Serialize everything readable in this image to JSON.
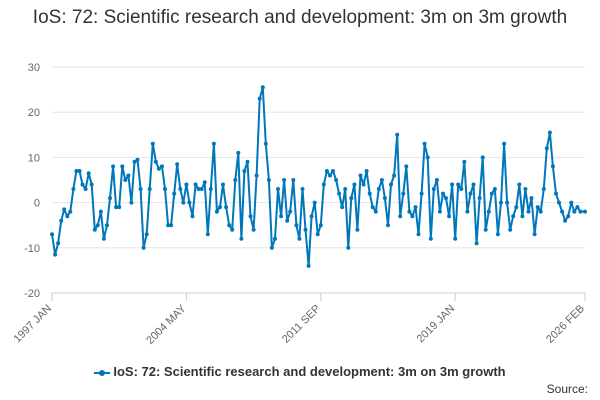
{
  "chart_data": {
    "type": "line",
    "title": "IoS: 72: Scientific research and development: 3m on 3m growth",
    "xlabel": "",
    "ylabel": "",
    "ylim": [
      -20,
      30
    ],
    "yticks": [
      -20,
      -10,
      0,
      10,
      20,
      30
    ],
    "x_range": [
      "1997-01",
      "2026-02"
    ],
    "xticks": [
      {
        "label": "1997 JAN",
        "date": "1997-01"
      },
      {
        "label": "2004 MAY",
        "date": "2004-05"
      },
      {
        "label": "2011 SEP",
        "date": "2011-09"
      },
      {
        "label": "2019 JAN",
        "date": "2019-01"
      },
      {
        "label": "2026 FEB",
        "date": "2026-02"
      }
    ],
    "grid": true,
    "legend_position": "bottom",
    "color": "#0077bb",
    "series": [
      {
        "name": "IoS: 72: Scientific research and development: 3m on 3m growth",
        "points": [
          [
            "1997-01",
            -7
          ],
          [
            "1997-03",
            -11.5
          ],
          [
            "1997-05",
            -9
          ],
          [
            "1997-07",
            -4
          ],
          [
            "1997-09",
            -1.5
          ],
          [
            "1997-11",
            -3
          ],
          [
            "1998-01",
            -2
          ],
          [
            "1998-03",
            3
          ],
          [
            "1998-05",
            7
          ],
          [
            "1998-07",
            7
          ],
          [
            "1998-09",
            4
          ],
          [
            "1998-11",
            3
          ],
          [
            "1999-01",
            6.5
          ],
          [
            "1999-03",
            4
          ],
          [
            "1999-05",
            -6
          ],
          [
            "1999-07",
            -5
          ],
          [
            "1999-09",
            -2
          ],
          [
            "1999-11",
            -8
          ],
          [
            "2000-01",
            -5
          ],
          [
            "2000-03",
            1
          ],
          [
            "2000-05",
            8
          ],
          [
            "2000-07",
            -1
          ],
          [
            "2000-09",
            -1
          ],
          [
            "2000-11",
            8
          ],
          [
            "2001-01",
            5
          ],
          [
            "2001-03",
            6
          ],
          [
            "2001-05",
            0
          ],
          [
            "2001-07",
            9
          ],
          [
            "2001-09",
            9.5
          ],
          [
            "2001-11",
            3
          ],
          [
            "2002-01",
            -10
          ],
          [
            "2002-03",
            -7
          ],
          [
            "2002-05",
            3
          ],
          [
            "2002-07",
            13
          ],
          [
            "2002-09",
            9
          ],
          [
            "2002-11",
            7.5
          ],
          [
            "2003-01",
            8
          ],
          [
            "2003-03",
            3
          ],
          [
            "2003-05",
            -5
          ],
          [
            "2003-07",
            -5
          ],
          [
            "2003-09",
            2
          ],
          [
            "2003-11",
            8.5
          ],
          [
            "2004-01",
            3
          ],
          [
            "2004-03",
            0
          ],
          [
            "2004-05",
            4
          ],
          [
            "2004-07",
            0
          ],
          [
            "2004-09",
            -3
          ],
          [
            "2004-11",
            4
          ],
          [
            "2005-01",
            3
          ],
          [
            "2005-03",
            3
          ],
          [
            "2005-05",
            4.5
          ],
          [
            "2005-07",
            -7
          ],
          [
            "2005-09",
            3
          ],
          [
            "2005-11",
            13
          ],
          [
            "2006-01",
            -2
          ],
          [
            "2006-03",
            -1
          ],
          [
            "2006-05",
            4
          ],
          [
            "2006-07",
            -1
          ],
          [
            "2006-09",
            -5
          ],
          [
            "2006-11",
            -6
          ],
          [
            "2007-01",
            5
          ],
          [
            "2007-03",
            11
          ],
          [
            "2007-05",
            -8
          ],
          [
            "2007-07",
            7
          ],
          [
            "2007-09",
            9
          ],
          [
            "2007-11",
            -3
          ],
          [
            "2008-01",
            -6
          ],
          [
            "2008-03",
            6
          ],
          [
            "2008-05",
            23
          ],
          [
            "2008-07",
            25.5
          ],
          [
            "2008-09",
            13
          ],
          [
            "2008-11",
            5
          ],
          [
            "2009-01",
            -10
          ],
          [
            "2009-03",
            -8
          ],
          [
            "2009-05",
            3
          ],
          [
            "2009-07",
            -3
          ],
          [
            "2009-09",
            5
          ],
          [
            "2009-11",
            -4
          ],
          [
            "2010-01",
            -2
          ],
          [
            "2010-03",
            5
          ],
          [
            "2010-05",
            -5
          ],
          [
            "2010-07",
            -8
          ],
          [
            "2010-09",
            3
          ],
          [
            "2010-11",
            -6
          ],
          [
            "2011-01",
            -14
          ],
          [
            "2011-03",
            -3
          ],
          [
            "2011-05",
            0
          ],
          [
            "2011-07",
            -7
          ],
          [
            "2011-09",
            -5
          ],
          [
            "2011-11",
            4
          ],
          [
            "2012-01",
            7
          ],
          [
            "2012-03",
            6
          ],
          [
            "2012-05",
            7
          ],
          [
            "2012-07",
            5
          ],
          [
            "2012-09",
            2
          ],
          [
            "2012-11",
            -1
          ],
          [
            "2013-01",
            3
          ],
          [
            "2013-03",
            -10
          ],
          [
            "2013-05",
            1
          ],
          [
            "2013-07",
            4
          ],
          [
            "2013-09",
            -6
          ],
          [
            "2013-11",
            6
          ],
          [
            "2014-01",
            4
          ],
          [
            "2014-03",
            7
          ],
          [
            "2014-05",
            2
          ],
          [
            "2014-07",
            -1
          ],
          [
            "2014-09",
            -2
          ],
          [
            "2014-11",
            3
          ],
          [
            "2015-01",
            5
          ],
          [
            "2015-03",
            1
          ],
          [
            "2015-05",
            -5
          ],
          [
            "2015-07",
            4
          ],
          [
            "2015-09",
            6
          ],
          [
            "2015-11",
            15
          ],
          [
            "2016-01",
            -3
          ],
          [
            "2016-03",
            2
          ],
          [
            "2016-05",
            8
          ],
          [
            "2016-07",
            -2
          ],
          [
            "2016-09",
            -3
          ],
          [
            "2016-11",
            -1
          ],
          [
            "2017-01",
            -7
          ],
          [
            "2017-03",
            2
          ],
          [
            "2017-05",
            13
          ],
          [
            "2017-07",
            10
          ],
          [
            "2017-09",
            -8
          ],
          [
            "2017-11",
            3
          ],
          [
            "2018-01",
            5
          ],
          [
            "2018-03",
            -2
          ],
          [
            "2018-05",
            2
          ],
          [
            "2018-07",
            1
          ],
          [
            "2018-09",
            -3
          ],
          [
            "2018-11",
            4
          ],
          [
            "2019-01",
            -8
          ],
          [
            "2019-03",
            4
          ],
          [
            "2019-05",
            3
          ],
          [
            "2019-07",
            9
          ],
          [
            "2019-09",
            -2
          ],
          [
            "2019-11",
            2
          ],
          [
            "2020-01",
            4
          ],
          [
            "2020-03",
            -9
          ],
          [
            "2020-05",
            1
          ],
          [
            "2020-07",
            10
          ],
          [
            "2020-09",
            -6
          ],
          [
            "2020-11",
            -2
          ],
          [
            "2021-01",
            2
          ],
          [
            "2021-03",
            3
          ],
          [
            "2021-05",
            -7
          ],
          [
            "2021-07",
            0
          ],
          [
            "2021-09",
            13
          ],
          [
            "2021-11",
            0
          ],
          [
            "2022-01",
            -6
          ],
          [
            "2022-03",
            -3
          ],
          [
            "2022-05",
            -1
          ],
          [
            "2022-07",
            4
          ],
          [
            "2022-09",
            -3
          ],
          [
            "2022-11",
            3
          ],
          [
            "2023-01",
            -2
          ],
          [
            "2023-03",
            1
          ],
          [
            "2023-05",
            -7
          ],
          [
            "2023-07",
            -1
          ],
          [
            "2023-09",
            -2
          ],
          [
            "2023-11",
            3
          ],
          [
            "2024-01",
            12
          ],
          [
            "2024-03",
            15.5
          ],
          [
            "2024-05",
            8
          ],
          [
            "2024-07",
            2
          ],
          [
            "2024-09",
            0
          ],
          [
            "2024-11",
            -2
          ],
          [
            "2025-01",
            -4
          ],
          [
            "2025-03",
            -3
          ],
          [
            "2025-05",
            0
          ],
          [
            "2025-07",
            -2
          ],
          [
            "2025-09",
            -1
          ],
          [
            "2025-11",
            -2
          ],
          [
            "2026-02",
            -2
          ]
        ]
      }
    ]
  },
  "legend": {
    "label": "IoS: 72: Scientific research and development: 3m on 3m growth"
  },
  "source": {
    "label": "Source:"
  }
}
